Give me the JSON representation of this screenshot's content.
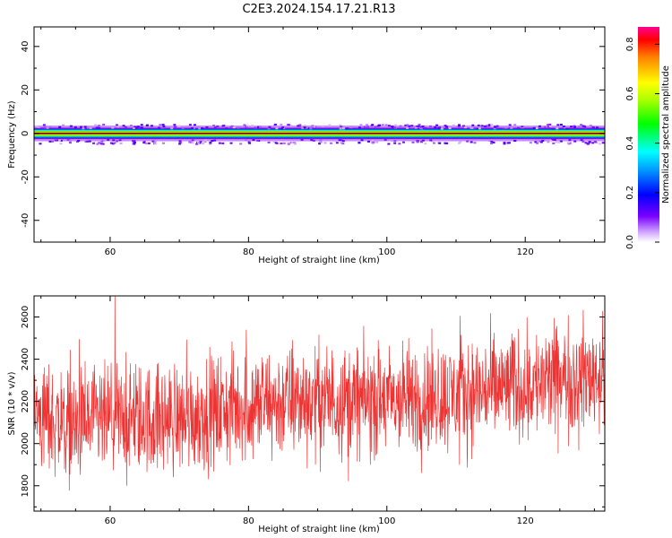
{
  "title": "C2E3.2024.154.17.21.R13",
  "chart_data": [
    {
      "type": "heatmap",
      "xlabel": "Height of straight line (km)",
      "ylabel": "Frequency (Hz)",
      "xlim": [
        49,
        131.5
      ],
      "ylim": [
        -50,
        49
      ],
      "xticks": [
        60,
        80,
        100,
        120
      ],
      "yticks": [
        -40,
        -20,
        0,
        20,
        40
      ],
      "band": {
        "center_hz": 0.0,
        "layers": [
          {
            "half_width_hz": 3.6,
            "amplitude": 0.05
          },
          {
            "half_width_hz": 2.6,
            "amplitude": 0.1
          },
          {
            "half_width_hz": 2.0,
            "amplitude": 0.25
          },
          {
            "half_width_hz": 1.6,
            "amplitude": 0.4
          },
          {
            "half_width_hz": 1.2,
            "amplitude": 0.5
          },
          {
            "half_width_hz": 0.8,
            "amplitude": 0.65
          },
          {
            "half_width_hz": 0.45,
            "amplitude": 0.8
          }
        ]
      },
      "colorbar": {
        "label": "Normalized spectral amplitude",
        "range": [
          0,
          0.87
        ],
        "ticks": [
          0.0,
          0.2,
          0.4,
          0.6,
          0.8
        ],
        "colormap": "hsv"
      }
    },
    {
      "type": "line",
      "xlabel": "Height of straight line (km)",
      "ylabel": "SNR (10 * v/v)",
      "xlim": [
        49,
        131.5
      ],
      "ylim": [
        1680,
        2700
      ],
      "xticks": [
        60,
        80,
        100,
        120
      ],
      "yticks": [
        1800,
        2000,
        2200,
        2400,
        2600
      ],
      "series_color": "#ee3333",
      "trend": [
        {
          "x": 49,
          "y": 2140
        },
        {
          "x": 55,
          "y": 2080
        },
        {
          "x": 60,
          "y": 2110
        },
        {
          "x": 70,
          "y": 2120
        },
        {
          "x": 80,
          "y": 2180
        },
        {
          "x": 90,
          "y": 2210
        },
        {
          "x": 100,
          "y": 2200
        },
        {
          "x": 110,
          "y": 2230
        },
        {
          "x": 120,
          "y": 2280
        },
        {
          "x": 131.5,
          "y": 2330
        }
      ],
      "noise_amplitude": 190,
      "sample_count": 1800
    }
  ]
}
